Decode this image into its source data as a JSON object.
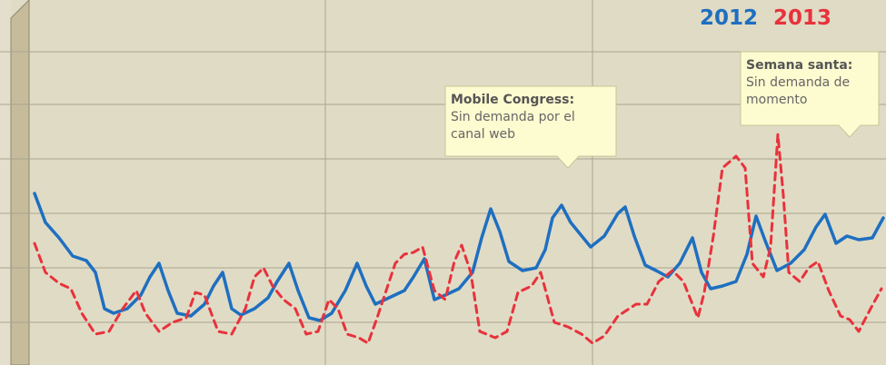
{
  "chart_data": {
    "type": "line",
    "xlim": [
      32,
      975
    ],
    "xticks": [
      358,
      652
    ],
    "ylim": [
      0,
      402
    ],
    "yticks": [
      47,
      107,
      167,
      227,
      287,
      345
    ],
    "grid": true,
    "legend": "top-right",
    "series": [
      {
        "name": "2012",
        "color": "#1e6fc0",
        "dashed": false,
        "x": [
          38,
          50,
          65,
          80,
          95,
          105,
          115,
          125,
          140,
          155,
          165,
          175,
          185,
          195,
          210,
          225,
          235,
          245,
          255,
          265,
          280,
          295,
          305,
          318,
          328,
          340,
          352,
          365,
          380,
          393,
          403,
          413,
          428,
          445,
          455,
          467,
          478,
          490,
          505,
          520,
          530,
          540,
          550,
          560,
          575,
          590,
          600,
          608,
          618,
          628,
          650,
          665,
          680,
          688,
          698,
          710,
          722,
          735,
          748,
          762,
          772,
          782,
          795,
          810,
          822,
          832,
          842,
          855,
          870,
          885,
          898,
          908,
          920,
          932,
          945,
          960,
          972
        ],
        "values": [
          189,
          157,
          140,
          120,
          115,
          102,
          62,
          57,
          62,
          77,
          97,
          112,
          82,
          57,
          54,
          67,
          87,
          102,
          62,
          55,
          62,
          74,
          92,
          112,
          82,
          52,
          49,
          57,
          82,
          112,
          87,
          67,
          74,
          82,
          97,
          117,
          72,
          77,
          84,
          102,
          140,
          172,
          147,
          114,
          104,
          107,
          127,
          162,
          176,
          157,
          130,
          142,
          167,
          174,
          142,
          110,
          104,
          97,
          112,
          140,
          102,
          84,
          87,
          92,
          122,
          164,
          137,
          104,
          112,
          127,
          152,
          166,
          134,
          142,
          138,
          140,
          162
        ]
      },
      {
        "name": "2013",
        "color": "#e8323c",
        "dashed": true,
        "x": [
          38,
          50,
          65,
          78,
          90,
          105,
          120,
          135,
          150,
          160,
          175,
          190,
          205,
          215,
          225,
          240,
          255,
          270,
          280,
          290,
          300,
          312,
          325,
          337,
          350,
          362,
          372,
          382,
          395,
          405,
          415,
          425,
          435,
          445,
          455,
          465,
          478,
          490,
          500,
          508,
          518,
          528,
          545,
          558,
          570,
          585,
          595,
          610,
          625,
          640,
          652,
          665,
          680,
          700,
          712,
          725,
          740,
          752,
          768,
          775,
          785,
          795,
          810,
          820,
          828,
          840,
          848,
          856,
          862,
          868,
          880,
          890,
          900,
          912,
          925,
          935,
          945,
          958,
          970
        ],
        "values": [
          134,
          102,
          90,
          84,
          57,
          34,
          37,
          62,
          82,
          57,
          37,
          47,
          52,
          80,
          77,
          37,
          34,
          62,
          97,
          107,
          87,
          72,
          62,
          34,
          37,
          72,
          62,
          34,
          30,
          24,
          52,
          82,
          112,
          122,
          124,
          130,
          82,
          72,
          114,
          132,
          102,
          37,
          30,
          37,
          80,
          87,
          102,
          47,
          42,
          34,
          24,
          32,
          54,
          67,
          67,
          92,
          104,
          92,
          52,
          80,
          142,
          217,
          230,
          217,
          112,
          97,
          130,
          254,
          187,
          102,
          92,
          107,
          114,
          82,
          54,
          50,
          37,
          62,
          84
        ]
      }
    ],
    "annotations": [
      {
        "title": "Mobile Congress:",
        "lines": [
          "Sin demanda por el",
          "canal web"
        ]
      },
      {
        "title": "Semana santa:",
        "lines": [
          "Sin demanda de",
          "momento"
        ]
      }
    ]
  }
}
